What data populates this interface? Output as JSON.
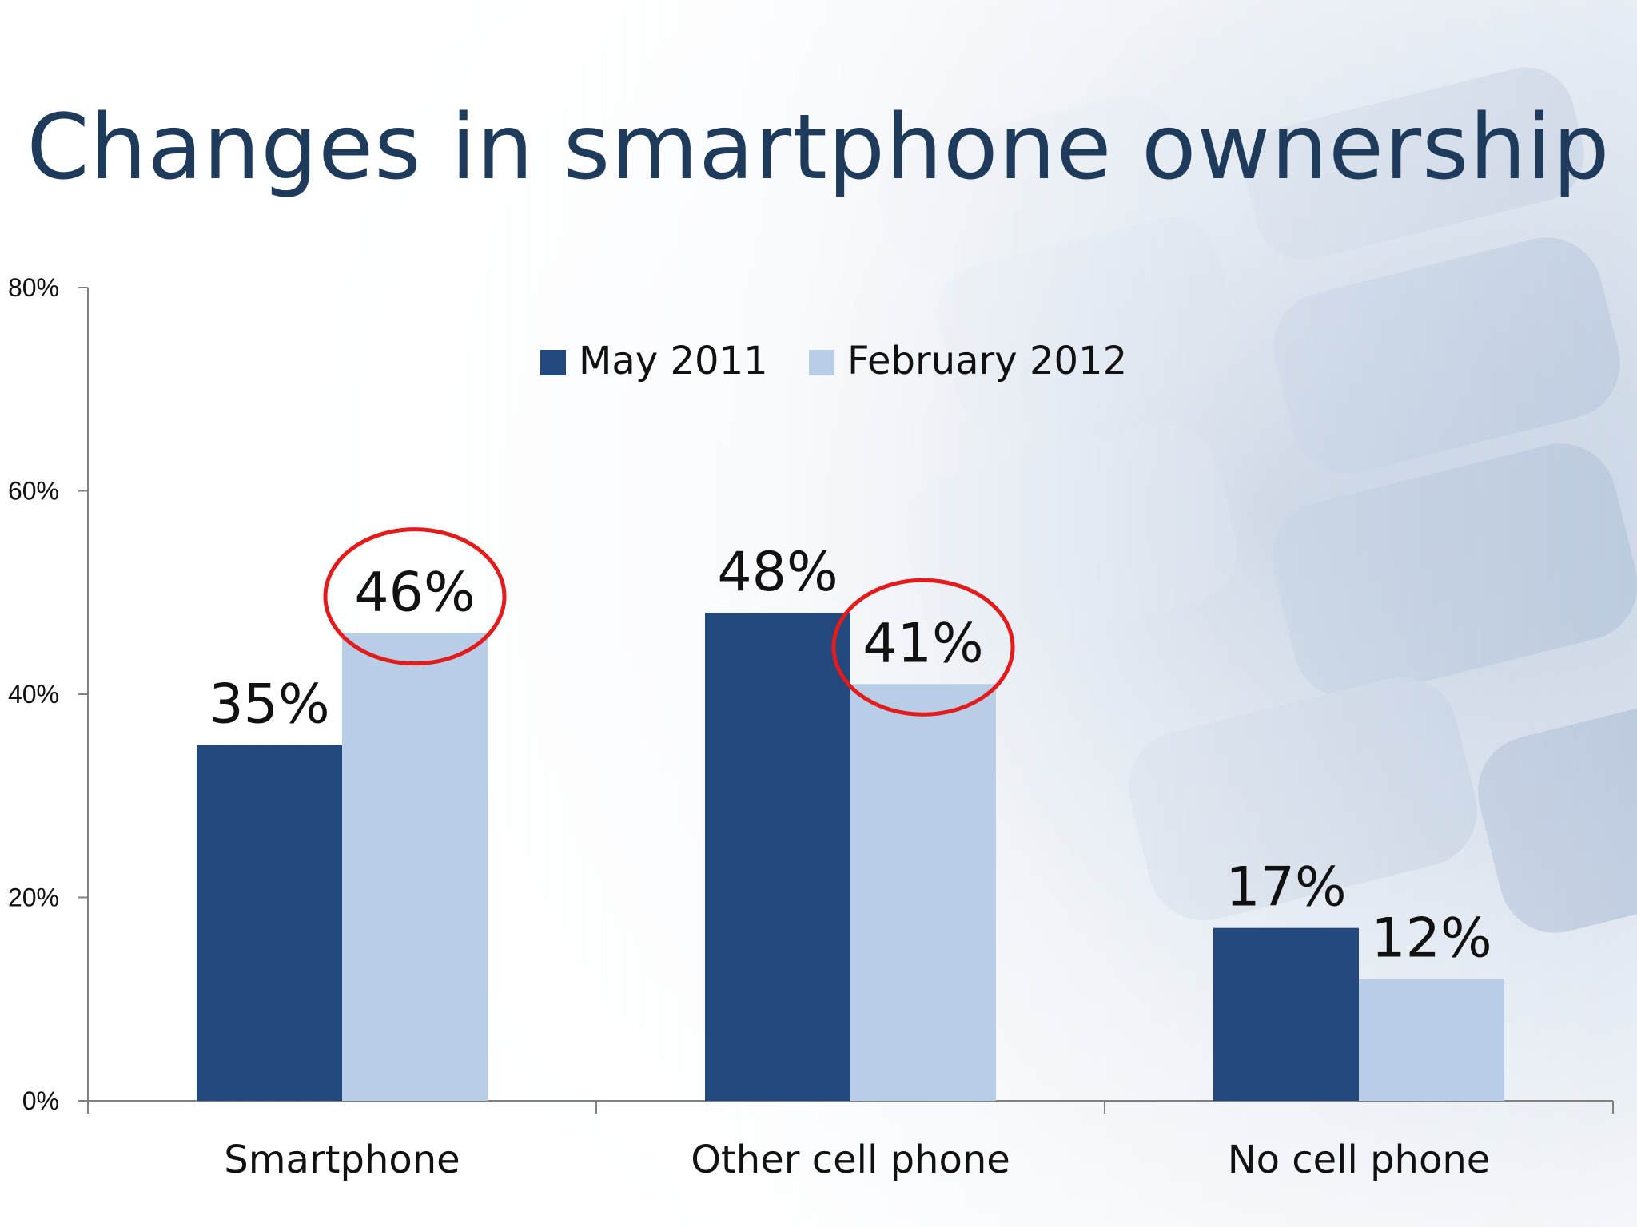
{
  "slide": {
    "title": "Changes in smartphone ownership"
  },
  "colors": {
    "series_1": "#22487e",
    "series_2": "#b8cde6",
    "highlight_circle": "#e31b1b",
    "title": "#1f3b5c",
    "axis": "#808080",
    "text": "#111111"
  },
  "chart_data": {
    "type": "bar",
    "title": "",
    "xlabel": "",
    "ylabel": "",
    "categories": [
      "Smartphone",
      "Other cell phone",
      "No cell phone"
    ],
    "series": [
      {
        "name": "May 2011",
        "values": [
          35,
          48,
          17
        ],
        "labels": [
          "35%",
          "48%",
          "17%"
        ]
      },
      {
        "name": "February 2012",
        "values": [
          46,
          41,
          12
        ],
        "labels": [
          "46%",
          "41%",
          "12%"
        ]
      }
    ],
    "ylim": [
      0,
      80
    ],
    "yticks": [
      0,
      20,
      40,
      60,
      80
    ],
    "ytick_labels": [
      "0%",
      "20%",
      "40%",
      "60%",
      "80%"
    ],
    "grid": false,
    "legend_position": "top-center",
    "highlighted_labels": [
      "46%",
      "41%"
    ]
  }
}
